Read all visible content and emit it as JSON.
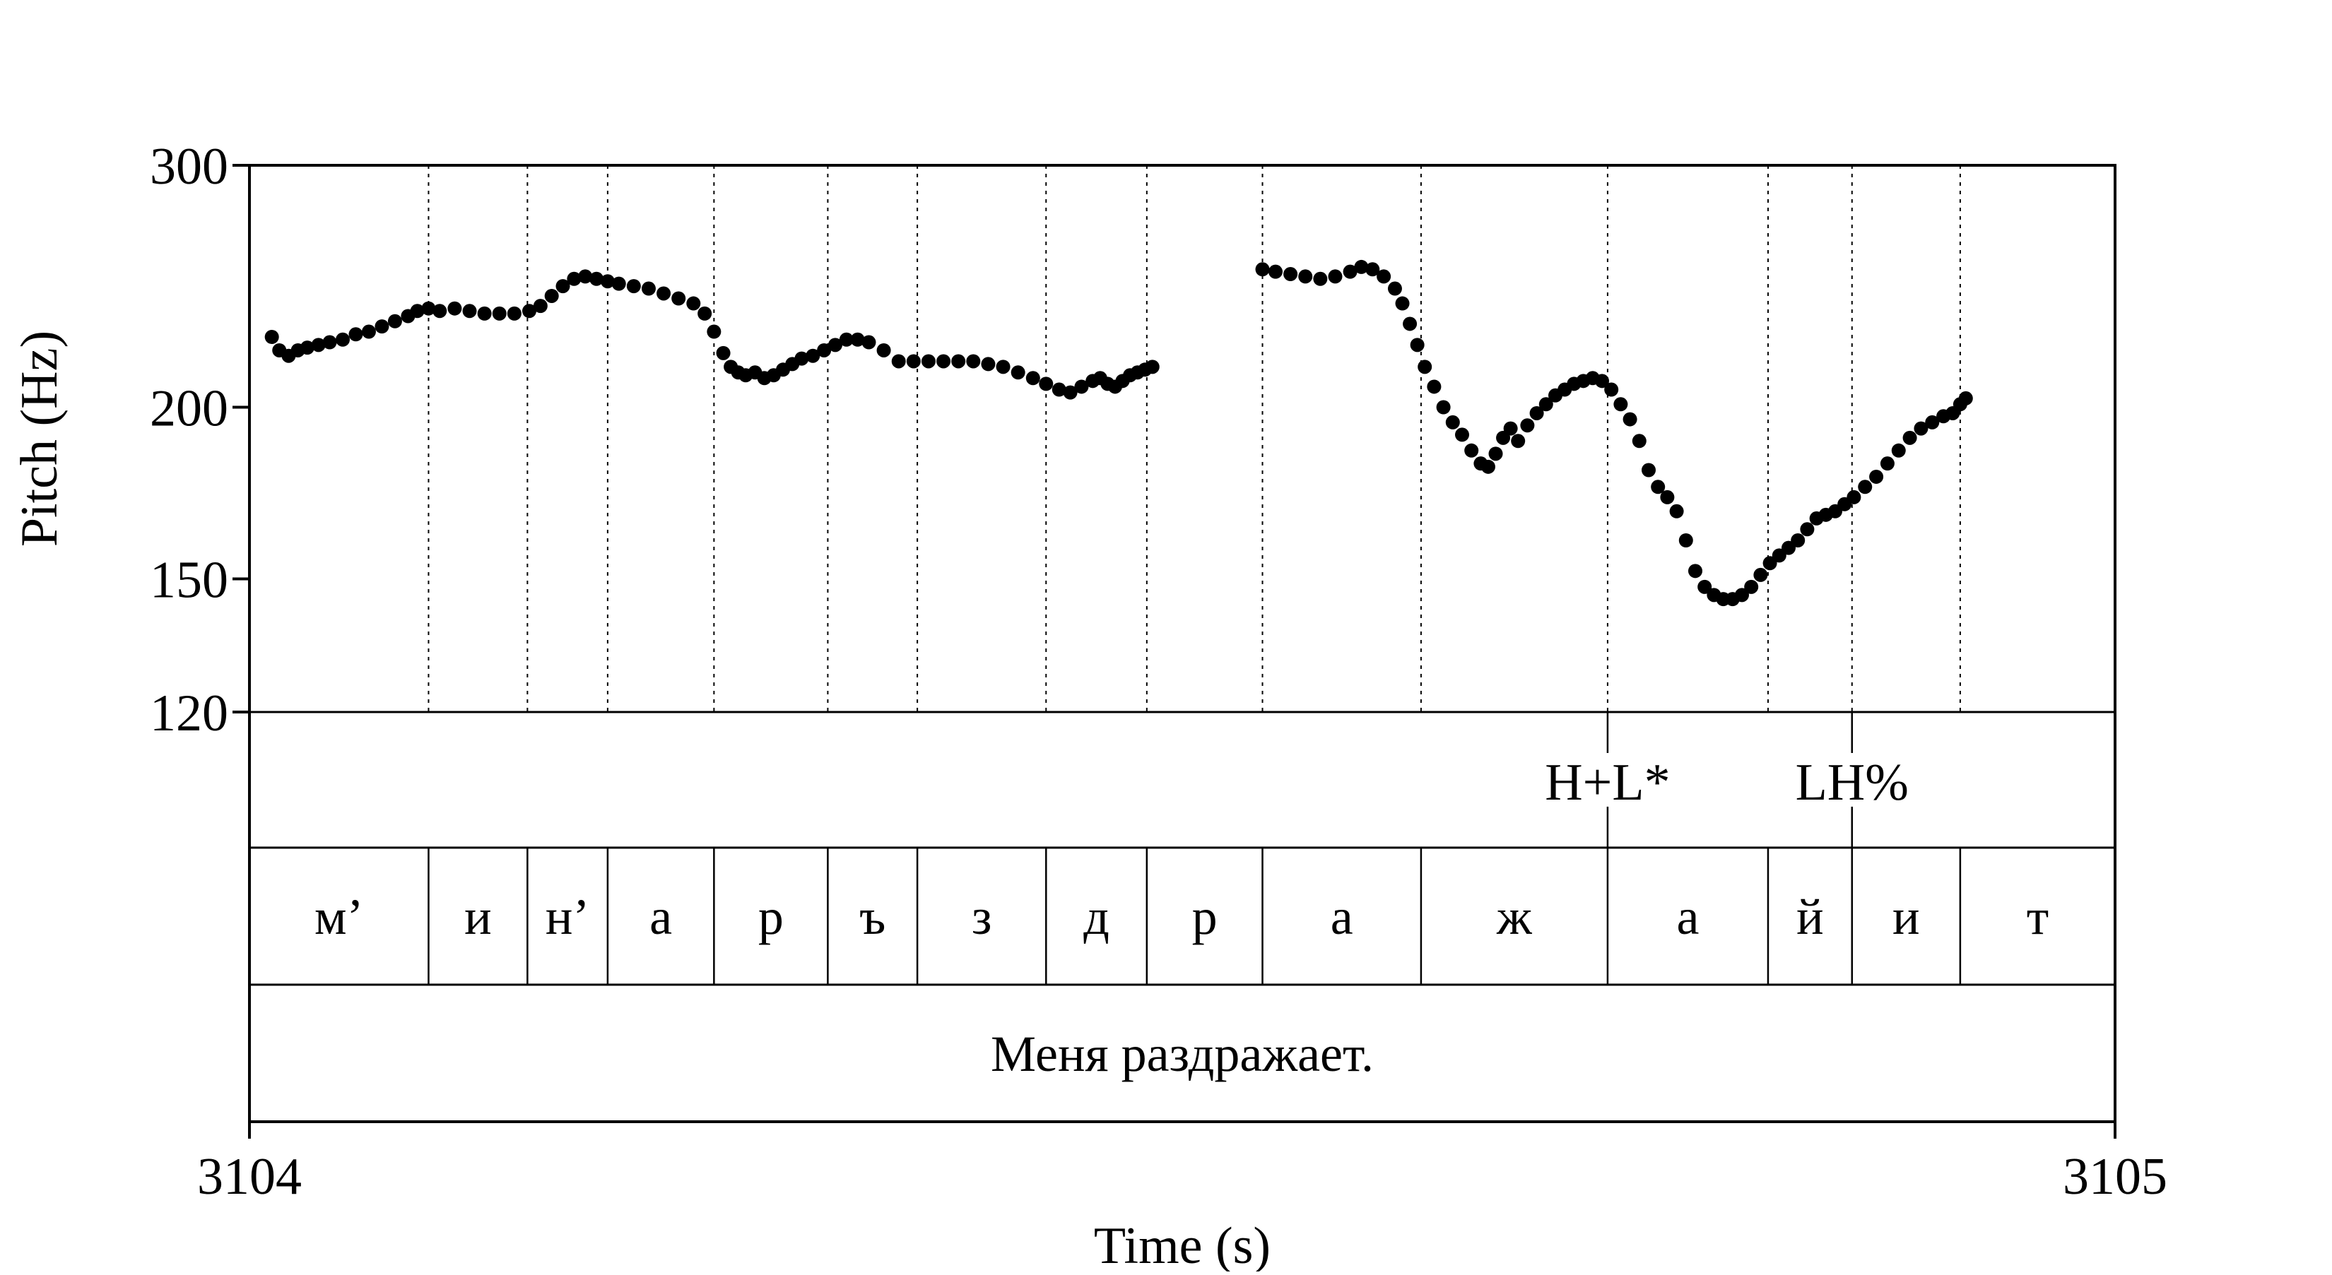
{
  "chart_data": {
    "type": "scatter",
    "title": "",
    "xlabel": "Time (s)",
    "ylabel": "Pitch (Hz)",
    "xlim": [
      3104.0,
      3105.0
    ],
    "ylim": [
      120,
      300
    ],
    "y_scale": "log",
    "x_ticks": [
      "3104",
      "3105"
    ],
    "y_ticks": [
      {
        "value": 300,
        "label": "300"
      },
      {
        "value": 200,
        "label": "200"
      },
      {
        "value": 150,
        "label": "150"
      },
      {
        "value": 120,
        "label": "120"
      }
    ],
    "grid": false,
    "point_color": "#000000",
    "segment_boundaries": [
      3104.096,
      3104.149,
      3104.192,
      3104.249,
      3104.31,
      3104.358,
      3104.427,
      3104.481,
      3104.543,
      3104.628,
      3104.728,
      3104.814,
      3104.859,
      3104.917
    ],
    "tones_tier": [
      {
        "time": 3104.728,
        "label": "H+L*"
      },
      {
        "time": 3104.859,
        "label": "LH%"
      }
    ],
    "segments": [
      {
        "label": "м’",
        "start": 3104.0,
        "end": 3104.096
      },
      {
        "label": "и",
        "start": 3104.096,
        "end": 3104.149
      },
      {
        "label": "н’",
        "start": 3104.149,
        "end": 3104.192
      },
      {
        "label": "а",
        "start": 3104.192,
        "end": 3104.249
      },
      {
        "label": "р",
        "start": 3104.249,
        "end": 3104.31
      },
      {
        "label": "ъ",
        "start": 3104.31,
        "end": 3104.358
      },
      {
        "label": "з",
        "start": 3104.358,
        "end": 3104.427
      },
      {
        "label": "д",
        "start": 3104.427,
        "end": 3104.481
      },
      {
        "label": "р",
        "start": 3104.481,
        "end": 3104.543
      },
      {
        "label": "а",
        "start": 3104.543,
        "end": 3104.628
      },
      {
        "label": "ж",
        "start": 3104.628,
        "end": 3104.728
      },
      {
        "label": "а",
        "start": 3104.728,
        "end": 3104.814
      },
      {
        "label": "й",
        "start": 3104.814,
        "end": 3104.859
      },
      {
        "label": "и",
        "start": 3104.859,
        "end": 3104.917
      },
      {
        "label": "т",
        "start": 3104.917,
        "end": 3105.0
      }
    ],
    "sentence": "Меня раздражает.",
    "series": [
      {
        "x": [
          3104.012,
          3104.016,
          3104.021,
          3104.026,
          3104.031,
          3104.037,
          3104.043,
          3104.05,
          3104.057,
          3104.064,
          3104.071,
          3104.078,
          3104.085,
          3104.09,
          3104.096,
          3104.102,
          3104.11,
          3104.118,
          3104.126,
          3104.134,
          3104.142,
          3104.15,
          3104.156,
          3104.162,
          3104.168,
          3104.174,
          3104.18,
          3104.186,
          3104.192,
          3104.198,
          3104.206,
          3104.214,
          3104.222,
          3104.23,
          3104.238,
          3104.244,
          3104.249,
          3104.254,
          3104.258,
          3104.262,
          3104.266,
          3104.271,
          3104.276,
          3104.281,
          3104.286,
          3104.291,
          3104.296,
          3104.302,
          3104.308,
          3104.314,
          3104.32,
          3104.326,
          3104.332,
          3104.34,
          3104.348,
          3104.356,
          3104.364,
          3104.372,
          3104.38,
          3104.388,
          3104.396,
          3104.404,
          3104.412,
          3104.42,
          3104.427,
          3104.434,
          3104.44,
          3104.446,
          3104.452,
          3104.456,
          3104.46,
          3104.464,
          3104.468,
          3104.472,
          3104.476,
          3104.48,
          3104.484
        ],
        "y": [
          225,
          220,
          218,
          220,
          221,
          222,
          223,
          224,
          226,
          227,
          229,
          231,
          233,
          235,
          236,
          235,
          236,
          235,
          234,
          234,
          234,
          235,
          237,
          241,
          245,
          248,
          249,
          248,
          247,
          246,
          245,
          244,
          242,
          240,
          238,
          234,
          227,
          219,
          214,
          212,
          211,
          212,
          210,
          211,
          213,
          215,
          217,
          218,
          220,
          222,
          224,
          224,
          223,
          220,
          216,
          216,
          216,
          216,
          216,
          216,
          215,
          214,
          212,
          210,
          208,
          206,
          205,
          207,
          209,
          210,
          208,
          207,
          209,
          211,
          212,
          213,
          214
        ]
      },
      {
        "x": [
          3104.543,
          3104.55,
          3104.558,
          3104.566,
          3104.574,
          3104.582,
          3104.59,
          3104.596,
          3104.602,
          3104.608,
          3104.614,
          3104.618,
          3104.622,
          3104.626,
          3104.63,
          3104.635,
          3104.64,
          3104.645,
          3104.65,
          3104.655,
          3104.66,
          3104.664,
          3104.668,
          3104.672,
          3104.676,
          3104.68,
          3104.685,
          3104.69,
          3104.695,
          3104.7,
          3104.705,
          3104.71,
          3104.715,
          3104.72,
          3104.725,
          3104.73,
          3104.735,
          3104.74,
          3104.745,
          3104.75,
          3104.755,
          3104.76,
          3104.765,
          3104.77,
          3104.775,
          3104.78,
          3104.785,
          3104.79,
          3104.795,
          3104.8,
          3104.805,
          3104.81,
          3104.815,
          3104.82,
          3104.825,
          3104.83,
          3104.835,
          3104.84,
          3104.845,
          3104.85,
          3104.855,
          3104.86,
          3104.866,
          3104.872,
          3104.878,
          3104.884,
          3104.89,
          3104.896,
          3104.902,
          3104.908,
          3104.913,
          3104.917,
          3104.92
        ],
        "y": [
          252,
          251,
          250,
          249,
          248,
          249,
          251,
          253,
          252,
          249,
          244,
          238,
          230,
          222,
          214,
          207,
          200,
          195,
          191,
          186,
          182,
          181,
          185,
          190,
          193,
          189,
          194,
          198,
          201,
          204,
          206,
          208,
          209,
          210,
          209,
          206,
          201,
          196,
          189,
          180,
          175,
          172,
          168,
          160,
          152,
          148,
          146,
          145,
          145,
          146,
          148,
          151,
          154,
          156,
          158,
          160,
          163,
          166,
          167,
          168,
          170,
          172,
          175,
          178,
          182,
          186,
          190,
          193,
          195,
          197,
          198,
          201,
          203
        ]
      }
    ]
  }
}
